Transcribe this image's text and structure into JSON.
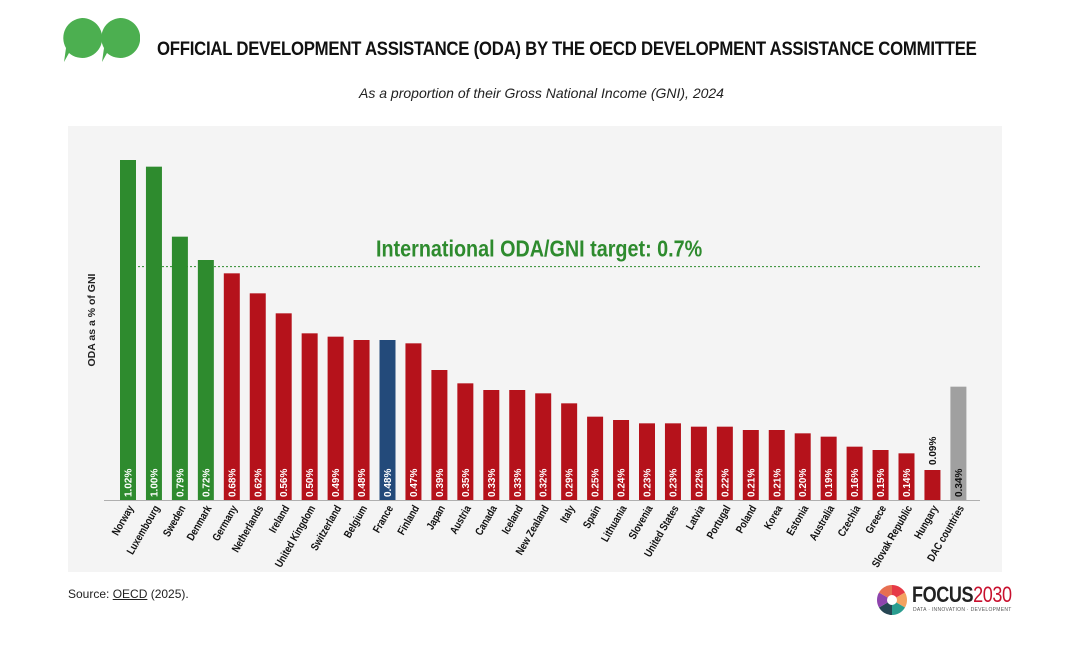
{
  "header": {
    "title": "OFFICIAL DEVELOPMENT ASSISTANCE (ODA) BY THE OECD DEVELOPMENT ASSISTANCE COMMITTEE",
    "subtitle": "As a proportion of their Gross National Income (GNI), 2024"
  },
  "footer": {
    "source_prefix": "Source: ",
    "source_link": "OECD",
    "source_suffix": " (2025).",
    "brand_word": "FOCUS",
    "brand_number": "2030",
    "brand_tagline": "DATA · INNOVATION · DEVELOPMENT"
  },
  "colors": {
    "above_target": "#2e8b2e",
    "below_target": "#b5121b",
    "france": "#234a7a",
    "dac_average": "#a0a0a0",
    "target_line": "#2e8b2e",
    "panel": "#f4f4f4"
  },
  "chart_data": {
    "type": "bar",
    "title": "OFFICIAL DEVELOPMENT ASSISTANCE (ODA) BY THE OECD DEVELOPMENT ASSISTANCE COMMITTEE",
    "subtitle": "As a proportion of their Gross National Income (GNI), 2024",
    "xlabel": "",
    "ylabel": "ODA as a % of GNI",
    "ylim": [
      0,
      1.05
    ],
    "grid": false,
    "target": {
      "value": 0.7,
      "label": "International ODA/GNI target: 0.7%"
    },
    "categories": [
      "Norway",
      "Luxembourg",
      "Sweden",
      "Denmark",
      "Germany",
      "Netherlands",
      "Ireland",
      "United Kingdom",
      "Switzerland",
      "Belgium",
      "France",
      "Finland",
      "Japan",
      "Austria",
      "Canada",
      "Iceland",
      "New Zealand",
      "Italy",
      "Spain",
      "Lithuania",
      "Slovenia",
      "United States",
      "Latvia",
      "Portugal",
      "Poland",
      "Korea",
      "Estonia",
      "Australia",
      "Czechia",
      "Greece",
      "Slovak Republic",
      "Hungary",
      "DAC countries"
    ],
    "values": [
      1.02,
      1.0,
      0.79,
      0.72,
      0.68,
      0.62,
      0.56,
      0.5,
      0.49,
      0.48,
      0.48,
      0.47,
      0.39,
      0.35,
      0.33,
      0.33,
      0.32,
      0.29,
      0.25,
      0.24,
      0.23,
      0.23,
      0.22,
      0.22,
      0.21,
      0.21,
      0.2,
      0.19,
      0.16,
      0.15,
      0.14,
      0.09,
      0.34
    ],
    "data_labels": [
      "1.02%",
      "1.00%",
      "0.79%",
      "0.72%",
      "0.68%",
      "0.62%",
      "0.56%",
      "0.50%",
      "0.49%",
      "0.48%",
      "0.48%",
      "0.47%",
      "0.39%",
      "0.35%",
      "0.33%",
      "0.33%",
      "0.32%",
      "0.29%",
      "0.25%",
      "0.24%",
      "0.23%",
      "0.23%",
      "0.22%",
      "0.22%",
      "0.21%",
      "0.21%",
      "0.20%",
      "0.19%",
      "0.16%",
      "0.15%",
      "0.14%",
      "0.09%",
      "0.34%"
    ],
    "bar_groups": [
      "above",
      "above",
      "above",
      "above",
      "below",
      "below",
      "below",
      "below",
      "below",
      "below",
      "france",
      "below",
      "below",
      "below",
      "below",
      "below",
      "below",
      "below",
      "below",
      "below",
      "below",
      "below",
      "below",
      "below",
      "below",
      "below",
      "below",
      "below",
      "below",
      "below",
      "below",
      "below",
      "average"
    ]
  }
}
